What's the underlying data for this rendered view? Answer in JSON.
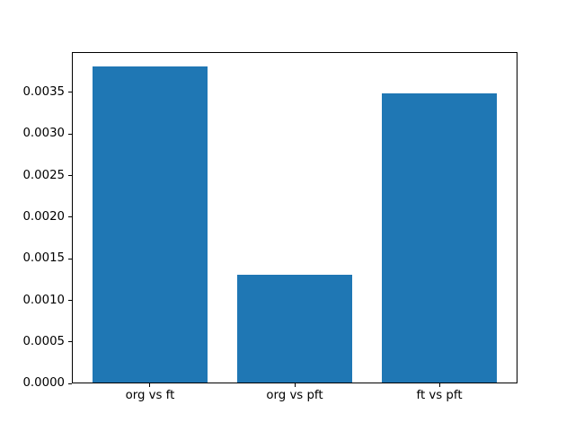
{
  "chart_data": {
    "type": "bar",
    "title": "",
    "xlabel": "",
    "ylabel": "",
    "categories": [
      "org vs ft",
      "org vs pft",
      "ft vs pft"
    ],
    "values": [
      0.0038,
      0.0013,
      0.00348
    ],
    "bar_color": "#1f77b4",
    "axis_color": "#000000",
    "background_color": "#ffffff",
    "grid": false,
    "legend": null,
    "bar_width": 0.8,
    "xlim": [
      -0.54,
      2.54
    ],
    "ylim": [
      0,
      0.00399
    ],
    "yticks": [
      0.0,
      0.0005,
      0.001,
      0.0015,
      0.002,
      0.0025,
      0.003,
      0.0035
    ],
    "ytick_labels": [
      "0.0000",
      "0.0005",
      "0.0010",
      "0.0015",
      "0.0020",
      "0.0025",
      "0.0030",
      "0.0035"
    ]
  }
}
